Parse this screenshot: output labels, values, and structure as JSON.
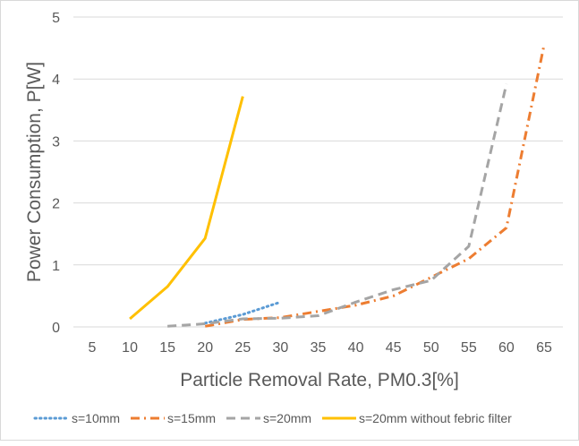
{
  "chart_data": {
    "type": "line",
    "title": "",
    "xlabel": "Particle Removal Rate, PM0.3[%]",
    "ylabel": "Power Consumption, P[W]",
    "xlim": [
      5,
      65
    ],
    "ylim": [
      0,
      5
    ],
    "x_ticks": [
      "5",
      "10",
      "15",
      "20",
      "25",
      "30",
      "35",
      "40",
      "45",
      "50",
      "55",
      "60",
      "65"
    ],
    "y_ticks": [
      "0",
      "1",
      "2",
      "3",
      "4",
      "5"
    ],
    "grid": true,
    "legend_position": "bottom",
    "series": [
      {
        "name": "s=10mm",
        "color": "#5b9bd5",
        "dash": "dot",
        "points": [
          [
            20,
            0.06
          ],
          [
            25,
            0.2
          ],
          [
            30,
            0.4
          ]
        ]
      },
      {
        "name": "s=15mm",
        "color": "#ed7d31",
        "dash": "dashdot",
        "points": [
          [
            20,
            0.01
          ],
          [
            25,
            0.12
          ],
          [
            30,
            0.15
          ],
          [
            35,
            0.25
          ],
          [
            40,
            0.35
          ],
          [
            45,
            0.5
          ],
          [
            50,
            0.8
          ],
          [
            55,
            1.1
          ],
          [
            60,
            1.6
          ],
          [
            65,
            4.55
          ]
        ]
      },
      {
        "name": "s=20mm",
        "color": "#a5a5a5",
        "dash": "dash",
        "points": [
          [
            15,
            0.01
          ],
          [
            20,
            0.05
          ],
          [
            25,
            0.13
          ],
          [
            30,
            0.14
          ],
          [
            35,
            0.18
          ],
          [
            40,
            0.4
          ],
          [
            45,
            0.6
          ],
          [
            50,
            0.75
          ],
          [
            55,
            1.3
          ],
          [
            60,
            3.92
          ]
        ]
      },
      {
        "name": "s=20mm without febric filter",
        "color": "#ffc000",
        "dash": "solid",
        "points": [
          [
            10,
            0.13
          ],
          [
            15,
            0.65
          ],
          [
            20,
            1.43
          ],
          [
            25,
            3.72
          ]
        ]
      }
    ]
  }
}
